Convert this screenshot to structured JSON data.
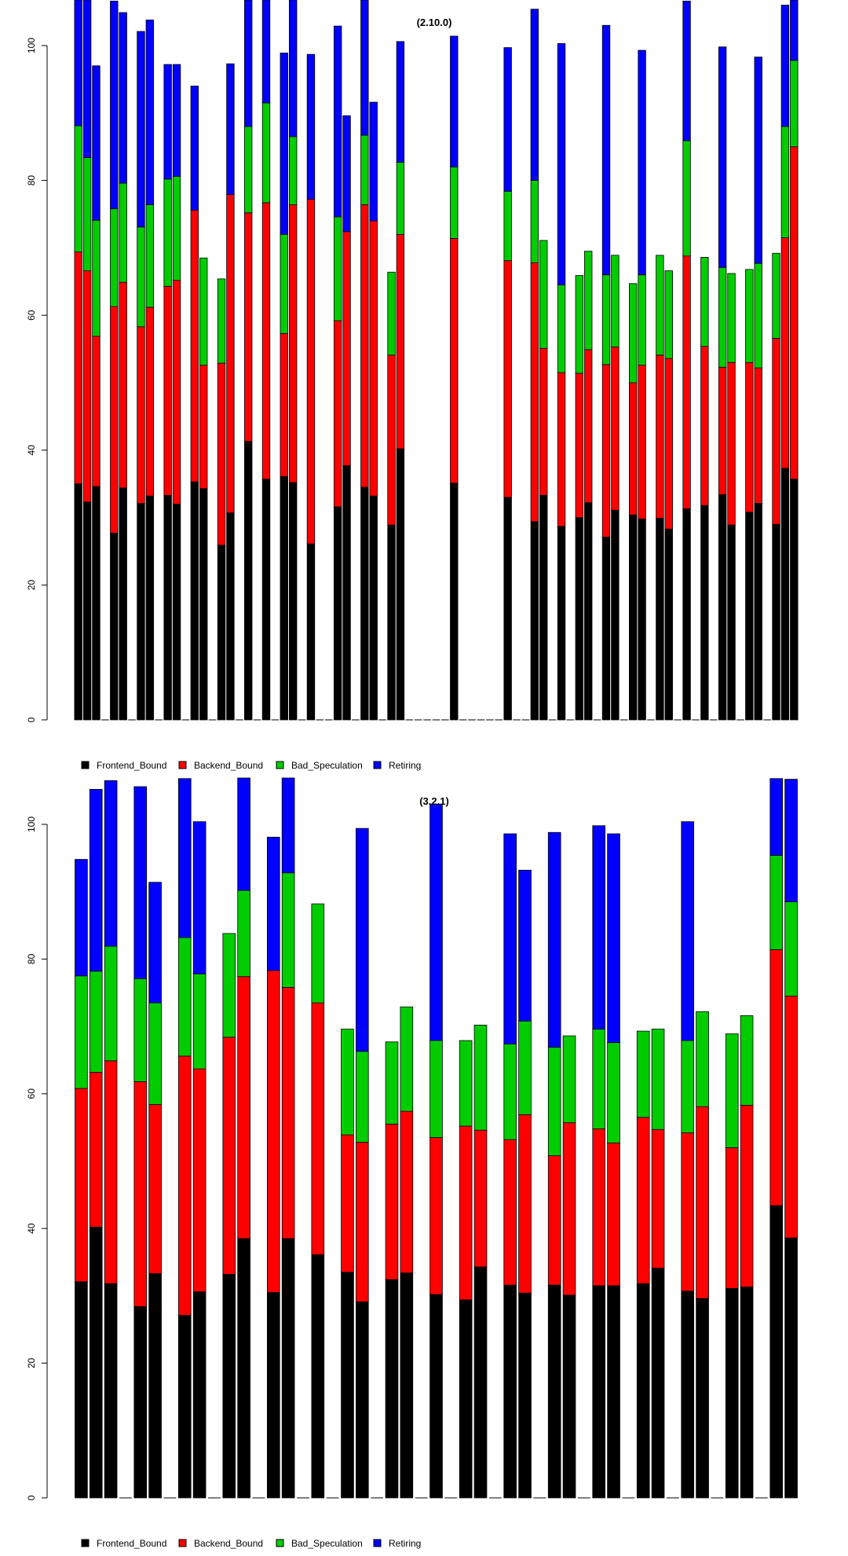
{
  "chart_data": [
    {
      "type": "bar",
      "stacked": true,
      "title": "(2.10.0)",
      "ylim": [
        0,
        106
      ],
      "yticks": [
        0,
        20,
        40,
        60,
        80,
        100
      ],
      "legend_position": "bottom-left",
      "colors": {
        "Frontend_Bound": "#000000",
        "Backend_Bound": "#ff0000",
        "Bad_Speculation": "#00cc00",
        "Retiring": "#0000ff"
      },
      "series": [
        {
          "name": "Frontend_Bound",
          "values": [
            35.0,
            32.3,
            34.6,
            0,
            27.7,
            34.4,
            0,
            32.1,
            33.2,
            0,
            33.3,
            32.0,
            0,
            35.3,
            34.3,
            0,
            25.9,
            30.7,
            0,
            41.3,
            0,
            35.7,
            0,
            36.1,
            35.2,
            0,
            26.1,
            0,
            0,
            31.6,
            37.7,
            0,
            34.5,
            33.2,
            0,
            28.9,
            40.2,
            0,
            0,
            0,
            0,
            0,
            35.1,
            0,
            0,
            0,
            0,
            0,
            33.0,
            0,
            0,
            29.4,
            33.3,
            0,
            28.7,
            0,
            30.0,
            32.2,
            0,
            27.1,
            31.1,
            0,
            30.4,
            29.8,
            0,
            29.9,
            28.3,
            0,
            31.3,
            0,
            31.8,
            0,
            33.4,
            28.9,
            0,
            30.8,
            32.1,
            0,
            29.0,
            37.3,
            35.7
          ]
        },
        {
          "name": "Backend_Bound",
          "values": [
            34.4,
            34.3,
            22.3,
            0,
            33.6,
            30.5,
            0,
            26.2,
            28.0,
            0,
            31.0,
            33.2,
            0,
            40.3,
            18.3,
            0,
            27.0,
            47.2,
            0,
            33.9,
            0,
            41.0,
            0,
            21.2,
            41.2,
            0,
            51.1,
            0,
            0,
            27.6,
            34.7,
            0,
            41.9,
            40.8,
            0,
            25.2,
            31.8,
            0,
            0,
            0,
            0,
            0,
            36.3,
            0,
            0,
            0,
            0,
            0,
            35.1,
            0,
            0,
            38.4,
            21.8,
            0,
            22.8,
            0,
            21.4,
            22.7,
            0,
            25.6,
            24.2,
            0,
            19.6,
            22.8,
            0,
            24.2,
            25.3,
            0,
            37.5,
            0,
            23.6,
            0,
            18.9,
            24.1,
            0,
            22.2,
            20.1,
            0,
            27.6,
            34.2,
            49.3
          ]
        },
        {
          "name": "Bad_Speculation",
          "values": [
            18.7,
            16.8,
            17.2,
            0,
            14.5,
            14.7,
            0,
            14.8,
            15.2,
            0,
            15.9,
            15.4,
            0,
            0,
            15.9,
            0,
            12.5,
            0,
            0,
            12.8,
            0,
            14.8,
            0,
            14.7,
            10.1,
            0,
            0,
            0,
            0,
            15.4,
            0,
            0,
            10.3,
            0,
            0,
            12.3,
            10.7,
            0,
            0,
            0,
            0,
            0,
            10.6,
            0,
            0,
            0,
            0,
            0,
            10.3,
            0,
            0,
            12.2,
            16.0,
            0,
            13.0,
            0,
            14.5,
            14.6,
            0,
            13.3,
            13.6,
            0,
            14.7,
            13.4,
            0,
            14.8,
            13.0,
            0,
            17.1,
            0,
            13.2,
            0,
            14.8,
            13.2,
            0,
            13.8,
            15.5,
            0,
            12.6,
            16.5,
            12.8
          ]
        },
        {
          "name": "Retiring",
          "values": [
            19.3,
            25.4,
            22.9,
            0,
            30.8,
            25.3,
            0,
            29.0,
            27.4,
            0,
            17.0,
            16.6,
            0,
            18.4,
            0,
            0,
            0,
            19.4,
            0,
            18.9,
            0,
            19.5,
            0,
            26.9,
            21.4,
            0,
            21.5,
            0,
            0,
            28.3,
            17.2,
            0,
            20.6,
            17.6,
            0,
            0,
            17.9,
            0,
            0,
            0,
            0,
            0,
            19.4,
            0,
            0,
            0,
            0,
            0,
            21.3,
            0,
            0,
            25.4,
            0,
            0,
            35.8,
            0,
            0,
            0,
            0,
            37.0,
            0,
            0,
            0,
            33.3,
            0,
            0,
            0,
            0,
            20.7,
            0,
            0,
            0,
            32.7,
            0,
            0,
            0,
            30.6,
            0,
            0,
            18.0,
            10.0
          ]
        }
      ]
    },
    {
      "type": "bar",
      "stacked": true,
      "title": "(3.2.1)",
      "ylim": [
        0,
        106
      ],
      "yticks": [
        0,
        20,
        40,
        60,
        80,
        100
      ],
      "legend_position": "bottom-left",
      "colors": {
        "Frontend_Bound": "#000000",
        "Backend_Bound": "#ff0000",
        "Bad_Speculation": "#00cc00",
        "Retiring": "#0000ff"
      },
      "series": [
        {
          "name": "Frontend_Bound",
          "values": [
            32.1,
            40.2,
            31.8,
            0,
            28.4,
            33.3,
            0,
            27.1,
            30.6,
            0,
            33.2,
            38.5,
            0,
            30.5,
            38.5,
            0,
            36.1,
            0,
            33.5,
            29.1,
            0,
            32.4,
            33.4,
            0,
            30.2,
            0,
            29.4,
            34.3,
            0,
            31.6,
            30.4,
            0,
            31.6,
            30.1,
            0,
            31.5,
            31.5,
            0,
            31.8,
            34.1,
            0,
            30.7,
            29.6,
            0,
            31.1,
            31.3,
            0,
            43.4,
            38.6
          ]
        },
        {
          "name": "Backend_Bound",
          "values": [
            28.7,
            23.0,
            33.1,
            0,
            33.4,
            25.1,
            0,
            38.5,
            33.1,
            0,
            35.2,
            38.9,
            0,
            47.8,
            37.3,
            0,
            37.4,
            0,
            20.4,
            23.7,
            0,
            23.1,
            24.0,
            0,
            23.3,
            0,
            25.8,
            20.3,
            0,
            21.6,
            26.5,
            0,
            19.2,
            25.6,
            0,
            23.3,
            21.2,
            0,
            24.7,
            20.6,
            0,
            23.5,
            28.5,
            0,
            20.9,
            27.0,
            0,
            38.0,
            35.9
          ]
        },
        {
          "name": "Bad_Speculation",
          "values": [
            16.7,
            15.0,
            17.0,
            0,
            15.3,
            15.1,
            0,
            17.6,
            14.1,
            0,
            15.4,
            12.8,
            0,
            0,
            17.0,
            0,
            14.7,
            0,
            15.7,
            13.5,
            0,
            12.2,
            15.5,
            0,
            14.4,
            0,
            12.7,
            15.6,
            0,
            14.2,
            13.9,
            0,
            16.1,
            12.9,
            0,
            14.8,
            14.9,
            0,
            12.8,
            14.9,
            0,
            13.7,
            14.1,
            0,
            16.9,
            13.3,
            0,
            14.0,
            14.0
          ]
        },
        {
          "name": "Retiring",
          "values": [
            17.3,
            27.0,
            24.6,
            0,
            28.5,
            17.9,
            0,
            23.6,
            22.6,
            0,
            0,
            17.0,
            0,
            19.8,
            14.2,
            0,
            0,
            0,
            0,
            33.1,
            0,
            0,
            0,
            0,
            35.1,
            0,
            0,
            0,
            0,
            31.2,
            22.4,
            0,
            31.9,
            0,
            0,
            30.2,
            31.0,
            0,
            0,
            0,
            0,
            32.5,
            0,
            0,
            0,
            0,
            0,
            11.4,
            18.2
          ]
        }
      ]
    }
  ],
  "legend": {
    "items": [
      {
        "label": "Frontend_Bound",
        "color": "#000000"
      },
      {
        "label": "Backend_Bound",
        "color": "#ff0000"
      },
      {
        "label": "Bad_Speculation",
        "color": "#00cc00"
      },
      {
        "label": "Retiring",
        "color": "#0000ff"
      }
    ]
  }
}
